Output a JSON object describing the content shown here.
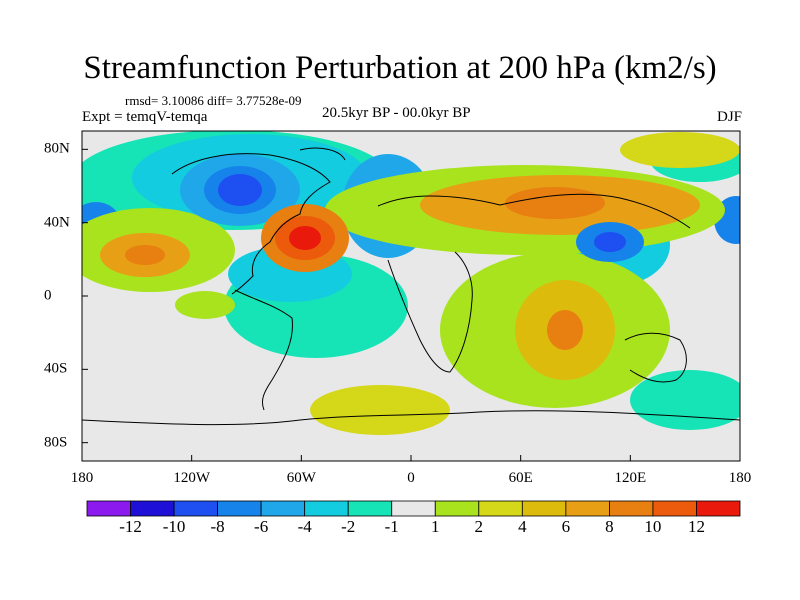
{
  "title": "Streamfunction Perturbation at 200 hPa (km2/s)",
  "stats": "rmsd= 3.10086 diff= 3.77528e-09",
  "experiment": "Expt = temqV-temqa",
  "period": "20.5kyr BP - 00.0kyr BP",
  "season": "DJF",
  "map": {
    "lon_range": [
      -180,
      180
    ],
    "lat_range": [
      -90,
      90
    ],
    "lon_ticks": [
      {
        "value": -180,
        "label": "180"
      },
      {
        "value": -120,
        "label": "120W"
      },
      {
        "value": -60,
        "label": "60W"
      },
      {
        "value": 0,
        "label": "0"
      },
      {
        "value": 60,
        "label": "60E"
      },
      {
        "value": 120,
        "label": "120E"
      },
      {
        "value": 180,
        "label": "180"
      }
    ],
    "lat_ticks": [
      {
        "value": 80,
        "label": "80N"
      },
      {
        "value": 40,
        "label": "40N"
      },
      {
        "value": 0,
        "label": "0"
      },
      {
        "value": -40,
        "label": "40S"
      },
      {
        "value": -80,
        "label": "80S"
      }
    ],
    "features": [
      {
        "name": "high-atlantic-east-us",
        "lon": -60,
        "lat": 35,
        "peak": 12
      },
      {
        "name": "low-north-america",
        "lon": -95,
        "lat": 55,
        "peak": -11
      },
      {
        "name": "low-east-asia",
        "lon": 115,
        "lat": 35,
        "peak": -6
      },
      {
        "name": "high-central-asia",
        "lon": 65,
        "lat": 50,
        "peak": 8
      },
      {
        "name": "high-indian-ocean",
        "lon": 85,
        "lat": -20,
        "peak": 8
      },
      {
        "name": "high-north-pacific",
        "lon": -145,
        "lat": 28,
        "peak": 7
      },
      {
        "name": "low-north-pacific-west",
        "lon": -178,
        "lat": 40,
        "peak": -6
      },
      {
        "name": "low-south-america",
        "lon": -60,
        "lat": -30,
        "peak": -4
      },
      {
        "name": "high-south-atlantic",
        "lon": -25,
        "lat": -70,
        "peak": 3
      }
    ]
  },
  "colorbar": {
    "colors": [
      "#8c1aef",
      "#1f10d8",
      "#1e4ff0",
      "#1683ea",
      "#20a7ea",
      "#14cce0",
      "#16e3b6",
      "#e8e8e8",
      "#a8e31e",
      "#d5d719",
      "#ddbb0d",
      "#e7a015",
      "#e77f11",
      "#ec5a0c",
      "#e91a0c"
    ],
    "labels": [
      "-12",
      "-10",
      "-8",
      "-6",
      "-4",
      "-2",
      "-1",
      "1",
      "2",
      "4",
      "6",
      "8",
      "10",
      "12"
    ]
  }
}
